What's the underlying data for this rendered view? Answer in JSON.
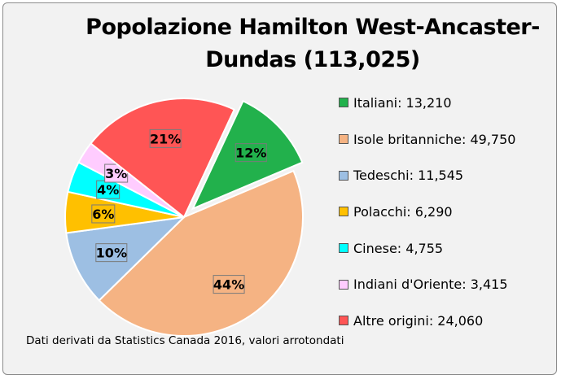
{
  "chart_data": {
    "type": "pie",
    "title_lines": [
      "Popolazione Hamilton West-Ancaster-",
      "Dundas (113,025)"
    ],
    "slices": [
      {
        "label": "Italiani",
        "value": 13210,
        "value_text": "13,210",
        "pct_label": "12%",
        "color": "#22b14c",
        "exploded": true
      },
      {
        "label": "Isole britanniche",
        "value": 49750,
        "value_text": "49,750",
        "pct_label": "44%",
        "color": "#f5b383",
        "exploded": false
      },
      {
        "label": "Tedeschi",
        "value": 11545,
        "value_text": "11,545",
        "pct_label": "10%",
        "color": "#9dbfe3",
        "exploded": false
      },
      {
        "label": "Polacchi",
        "value": 6290,
        "value_text": "6,290",
        "pct_label": "6%",
        "color": "#ffc000",
        "exploded": false
      },
      {
        "label": "Cinese",
        "value": 4755,
        "value_text": "4,755",
        "pct_label": "4%",
        "color": "#00ffff",
        "exploded": false
      },
      {
        "label": "Indiani d'Oriente",
        "value": 3415,
        "value_text": "3,415",
        "pct_label": "3%",
        "color": "#ffccff",
        "exploded": false
      },
      {
        "label": "Altre origini",
        "value": 24060,
        "value_text": "24,060",
        "pct_label": "21%",
        "color": "#ff5555",
        "exploded": false
      }
    ],
    "legend_position": "right",
    "note": "Dati derivati da Statistics Canada 2016, valori arrotondati"
  }
}
